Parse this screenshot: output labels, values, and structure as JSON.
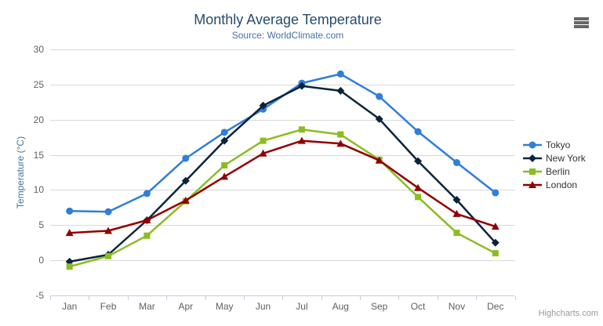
{
  "chart_data": {
    "type": "line",
    "title": "Monthly Average Temperature",
    "subtitle": "Source: WorldClimate.com",
    "xlabel": "",
    "ylabel": "Temperature (°C)",
    "categories": [
      "Jan",
      "Feb",
      "Mar",
      "Apr",
      "May",
      "Jun",
      "Jul",
      "Aug",
      "Sep",
      "Oct",
      "Nov",
      "Dec"
    ],
    "yticks": [
      -5,
      0,
      5,
      10,
      15,
      20,
      25,
      30
    ],
    "ylim": [
      -5,
      30
    ],
    "grid": "horizontal-only",
    "legend_position": "right-middle-vertical",
    "axis_line_color": "#c0d0e0",
    "grid_color": "#d8d8d8",
    "series": [
      {
        "name": "Tokyo",
        "color": "#2f7ed8",
        "marker": "circle",
        "values": [
          7.0,
          6.9,
          9.5,
          14.5,
          18.2,
          21.5,
          25.2,
          26.5,
          23.3,
          18.3,
          13.9,
          9.6
        ]
      },
      {
        "name": "New York",
        "color": "#0d233a",
        "marker": "diamond",
        "values": [
          -0.2,
          0.8,
          5.7,
          11.3,
          17.0,
          22.0,
          24.8,
          24.1,
          20.1,
          14.1,
          8.6,
          2.5
        ]
      },
      {
        "name": "Berlin",
        "color": "#8bbc21",
        "marker": "square",
        "values": [
          -0.9,
          0.6,
          3.5,
          8.4,
          13.5,
          17.0,
          18.6,
          17.9,
          14.3,
          9.0,
          3.9,
          1.0
        ]
      },
      {
        "name": "London",
        "color": "#910000",
        "marker": "triangle",
        "values": [
          3.9,
          4.2,
          5.7,
          8.5,
          11.9,
          15.2,
          17.0,
          16.6,
          14.2,
          10.3,
          6.6,
          4.8
        ]
      }
    ]
  },
  "theme": {
    "title_color": "#274b6d",
    "subtitle_color": "#4572a7",
    "axis_title_color": "#4572a7",
    "axis_label_color": "#606060",
    "legend_text_color": "#333333",
    "credit_color": "#999999"
  },
  "header": {
    "context_menu_icon": "hamburger-menu-icon"
  },
  "credit": {
    "label": "Highcharts.com"
  }
}
